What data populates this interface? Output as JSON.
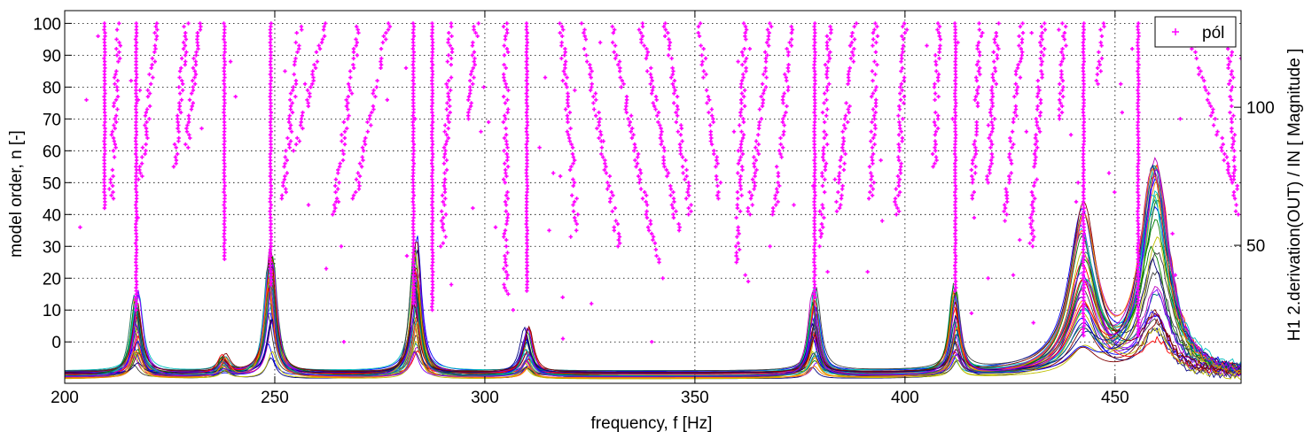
{
  "chart_data": {
    "type": "scatter",
    "subtype": "stabilization diagram with overlaid frequency response magnitudes",
    "title": "",
    "xlabel": "frequency, f [Hz]",
    "ylabel_left": "model order, n [-]",
    "ylabel_right": "H1 2.derivation(OUT) / IN  [ Magnitude ]",
    "xlim": [
      200,
      480
    ],
    "x_ticks": [
      200,
      250,
      300,
      350,
      400,
      450
    ],
    "ylim_left": [
      -13,
      104
    ],
    "y_ticks_left": [
      0,
      10,
      20,
      30,
      40,
      50,
      60,
      70,
      80,
      90,
      100
    ],
    "ylim_right": [
      0,
      135
    ],
    "y_ticks_right": [
      50,
      100
    ],
    "grid": true,
    "legend": {
      "position": "top-right",
      "entries": [
        "pól"
      ]
    },
    "pole_color": "#ff00ff",
    "stable_pole_columns": [
      {
        "freq": 209.5,
        "n_from": 42,
        "n_to": 100
      },
      {
        "freq": 217.0,
        "n_from": 10,
        "n_to": 100
      },
      {
        "freq": 238.0,
        "n_from": 26,
        "n_to": 100
      },
      {
        "freq": 249.0,
        "n_from": 18,
        "n_to": 100
      },
      {
        "freq": 283.0,
        "n_from": 12,
        "n_to": 100
      },
      {
        "freq": 287.5,
        "n_from": 10,
        "n_to": 100
      },
      {
        "freq": 310.0,
        "n_from": 16,
        "n_to": 100
      },
      {
        "freq": 378.5,
        "n_from": 14,
        "n_to": 100
      },
      {
        "freq": 412.0,
        "n_from": 16,
        "n_to": 100
      },
      {
        "freq": 442.5,
        "n_from": 2,
        "n_to": 100
      },
      {
        "freq": 455.5,
        "n_from": 2,
        "n_to": 100
      }
    ],
    "drifting_pole_tracks": [
      {
        "f_top": 213,
        "f_bottom": 211,
        "n_from": 45,
        "n_to": 100
      },
      {
        "f_top": 222,
        "f_bottom": 218,
        "n_from": 50,
        "n_to": 100
      },
      {
        "f_top": 229,
        "f_bottom": 226,
        "n_from": 55,
        "n_to": 100
      },
      {
        "f_top": 232,
        "f_bottom": 229,
        "n_from": 60,
        "n_to": 100
      },
      {
        "f_top": 256,
        "f_bottom": 252,
        "n_from": 45,
        "n_to": 100
      },
      {
        "f_top": 262,
        "f_bottom": 255,
        "n_from": 60,
        "n_to": 100
      },
      {
        "f_top": 270,
        "f_bottom": 264,
        "n_from": 40,
        "n_to": 100
      },
      {
        "f_top": 277,
        "f_bottom": 269,
        "n_from": 45,
        "n_to": 100
      },
      {
        "f_top": 292,
        "f_bottom": 290,
        "n_from": 30,
        "n_to": 100
      },
      {
        "f_top": 298,
        "f_bottom": 296,
        "n_from": 70,
        "n_to": 100
      },
      {
        "f_top": 305,
        "f_bottom": 305,
        "n_from": 15,
        "n_to": 100
      },
      {
        "f_top": 318,
        "f_bottom": 322,
        "n_from": 35,
        "n_to": 100
      },
      {
        "f_top": 323,
        "f_bottom": 332,
        "n_from": 30,
        "n_to": 100
      },
      {
        "f_top": 330,
        "f_bottom": 341,
        "n_from": 25,
        "n_to": 100
      },
      {
        "f_top": 337,
        "f_bottom": 346,
        "n_from": 35,
        "n_to": 100
      },
      {
        "f_top": 343,
        "f_bottom": 349,
        "n_from": 40,
        "n_to": 100
      },
      {
        "f_top": 351,
        "f_bottom": 356,
        "n_from": 45,
        "n_to": 100
      },
      {
        "f_top": 362,
        "f_bottom": 360,
        "n_from": 25,
        "n_to": 100
      },
      {
        "f_top": 368,
        "f_bottom": 363,
        "n_from": 40,
        "n_to": 100
      },
      {
        "f_top": 373,
        "f_bottom": 369,
        "n_from": 40,
        "n_to": 100
      },
      {
        "f_top": 382,
        "f_bottom": 380,
        "n_from": 30,
        "n_to": 100
      },
      {
        "f_top": 388,
        "f_bottom": 384,
        "n_from": 40,
        "n_to": 100
      },
      {
        "f_top": 393,
        "f_bottom": 392,
        "n_from": 45,
        "n_to": 100
      },
      {
        "f_top": 400,
        "f_bottom": 398,
        "n_from": 40,
        "n_to": 100
      },
      {
        "f_top": 408,
        "f_bottom": 407,
        "n_from": 55,
        "n_to": 100
      },
      {
        "f_top": 418,
        "f_bottom": 416,
        "n_from": 45,
        "n_to": 100
      },
      {
        "f_top": 422,
        "f_bottom": 420,
        "n_from": 50,
        "n_to": 100
      },
      {
        "f_top": 428,
        "f_bottom": 424,
        "n_from": 40,
        "n_to": 100
      },
      {
        "f_top": 433,
        "f_bottom": 430,
        "n_from": 30,
        "n_to": 100
      },
      {
        "f_top": 438,
        "f_bottom": 437,
        "n_from": 70,
        "n_to": 100
      },
      {
        "f_top": 447,
        "f_bottom": 446,
        "n_from": 80,
        "n_to": 100
      },
      {
        "f_top": 467,
        "f_bottom": 478,
        "n_from": 50,
        "n_to": 100
      },
      {
        "f_top": 477,
        "f_bottom": 479,
        "n_from": 40,
        "n_to": 100
      }
    ],
    "frf_peaks": [
      {
        "freq": 217.0,
        "peak_magnitude": 30
      },
      {
        "freq": 238.0,
        "peak_magnitude": 7
      },
      {
        "freq": 249.0,
        "peak_magnitude": 48
      },
      {
        "freq": 283.5,
        "peak_magnitude": 49
      },
      {
        "freq": 310.0,
        "peak_magnitude": 17
      },
      {
        "freq": 378.5,
        "peak_magnitude": 33
      },
      {
        "freq": 412.0,
        "peak_magnitude": 34
      },
      {
        "freq": 442.5,
        "peak_magnitude": 62
      },
      {
        "freq": 459.5,
        "peak_magnitude": 75
      }
    ],
    "frf_series_colors": [
      "#0000ff",
      "#008000",
      "#ff0000",
      "#00bfbf",
      "#bf00bf",
      "#bfbf00",
      "#404040",
      "#000080",
      "#800000",
      "#008080",
      "#ff8000",
      "#8000ff"
    ]
  }
}
